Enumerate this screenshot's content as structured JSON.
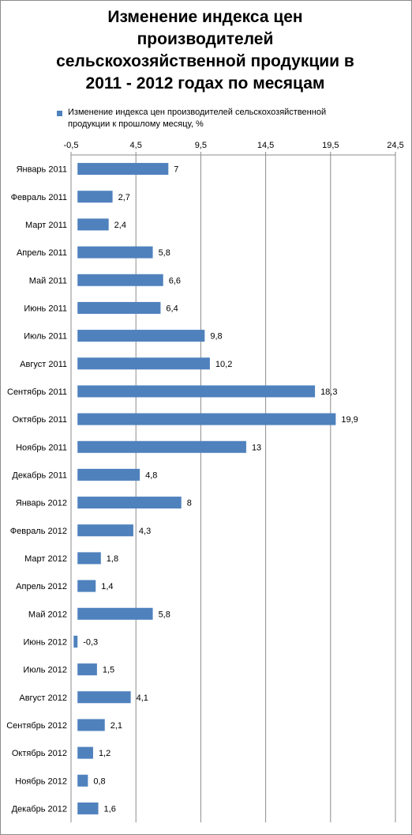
{
  "chart_data": {
    "type": "bar",
    "orientation": "horizontal",
    "title": "Изменение индекса цен\nпроизводителей\nсельскохозяйственной продукции в\n2011 - 2012 годах по месяцам",
    "legend_position": "top",
    "grid": true,
    "xlim": [
      -0.5,
      24.5
    ],
    "xticks": [
      "-0,5",
      "4,5",
      "9,5",
      "14,5",
      "19,5",
      "24,5"
    ],
    "bar_color": "#4f81bd",
    "series": [
      {
        "name": "Изменение  индекса цен производителей  сельскохозяйственной продукции к прошлому месяцу, %",
        "values": [
          7,
          2.7,
          2.4,
          5.8,
          6.6,
          6.4,
          9.8,
          10.2,
          18.3,
          19.9,
          13,
          4.8,
          8,
          4.3,
          1.8,
          1.4,
          5.8,
          -0.3,
          1.5,
          4.1,
          2.1,
          1.2,
          0.8,
          1.6
        ],
        "labels": [
          "7",
          "2,7",
          "2,4",
          "5,8",
          "6,6",
          "6,4",
          "9,8",
          "10,2",
          "18,3",
          "19,9",
          "13",
          "4,8",
          "8",
          "4,3",
          "1,8",
          "1,4",
          "5,8",
          "-0,3",
          "1,5",
          "4,1",
          "2,1",
          "1,2",
          "0,8",
          "1,6"
        ]
      }
    ],
    "categories": [
      "Январь 2011",
      "Февраль 2011",
      "Март 2011",
      "Апрель 2011",
      "Май 2011",
      "Июнь 2011",
      "Июль 2011",
      "Август 2011",
      "Сентябрь 2011",
      "Октябрь 2011",
      "Ноябрь 2011",
      "Декабрь 2011",
      "Январь 2012",
      "Февраль 2012",
      "Март 2012",
      "Апрель 2012",
      "Май 2012",
      "Июнь 2012",
      "Июль 2012",
      "Август 2012",
      "Сентябрь 2012",
      "Октябрь 2012",
      "Ноябрь 2012",
      "Декабрь 2012"
    ]
  }
}
